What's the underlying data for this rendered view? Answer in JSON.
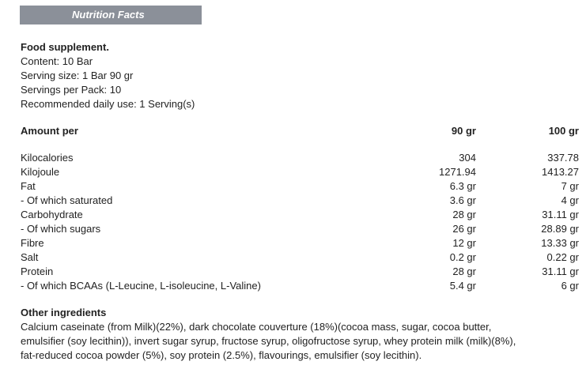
{
  "header": {
    "title": "Nutrition Facts"
  },
  "info": {
    "heading": "Food supplement.",
    "lines": [
      "Content: 10 Bar",
      "Serving size: 1 Bar 90 gr",
      "Servings per Pack: 10",
      "Recommended daily use: 1 Serving(s)"
    ]
  },
  "table": {
    "columns": [
      "Amount per",
      "90 gr",
      "100 gr"
    ],
    "rows": [
      [
        "Kilocalories",
        "304",
        "337.78"
      ],
      [
        "Kilojoule",
        "1271.94",
        "1413.27"
      ],
      [
        "Fat",
        "6.3 gr",
        "7 gr"
      ],
      [
        "- Of which saturated",
        "3.6 gr",
        "4 gr"
      ],
      [
        "Carbohydrate",
        "28 gr",
        "31.11 gr"
      ],
      [
        "- Of which sugars",
        "26 gr",
        "28.89 gr"
      ],
      [
        "Fibre",
        "12 gr",
        "13.33 gr"
      ],
      [
        "Salt",
        "0.2 gr",
        "0.22 gr"
      ],
      [
        "Protein",
        "28 gr",
        "31.11 gr"
      ],
      [
        "- Of which BCAAs (L-Leucine, L-isoleucine, L-Valine)",
        "5.4 gr",
        "6 gr"
      ]
    ]
  },
  "ingredients": {
    "heading": "Other ingredients",
    "lines": [
      "Calcium caseinate (from Milk)(22%), dark chocolate couverture (18%)(cocoa mass, sugar, cocoa butter,",
      "emulsifier (soy lecithin)), invert sugar syrup, fructose syrup, oligofructose syrup, whey protein milk (milk)(8%),",
      "fat-reduced cocoa powder (5%), soy protein (2.5%), flavourings, emulsifier (soy lecithin)."
    ]
  }
}
